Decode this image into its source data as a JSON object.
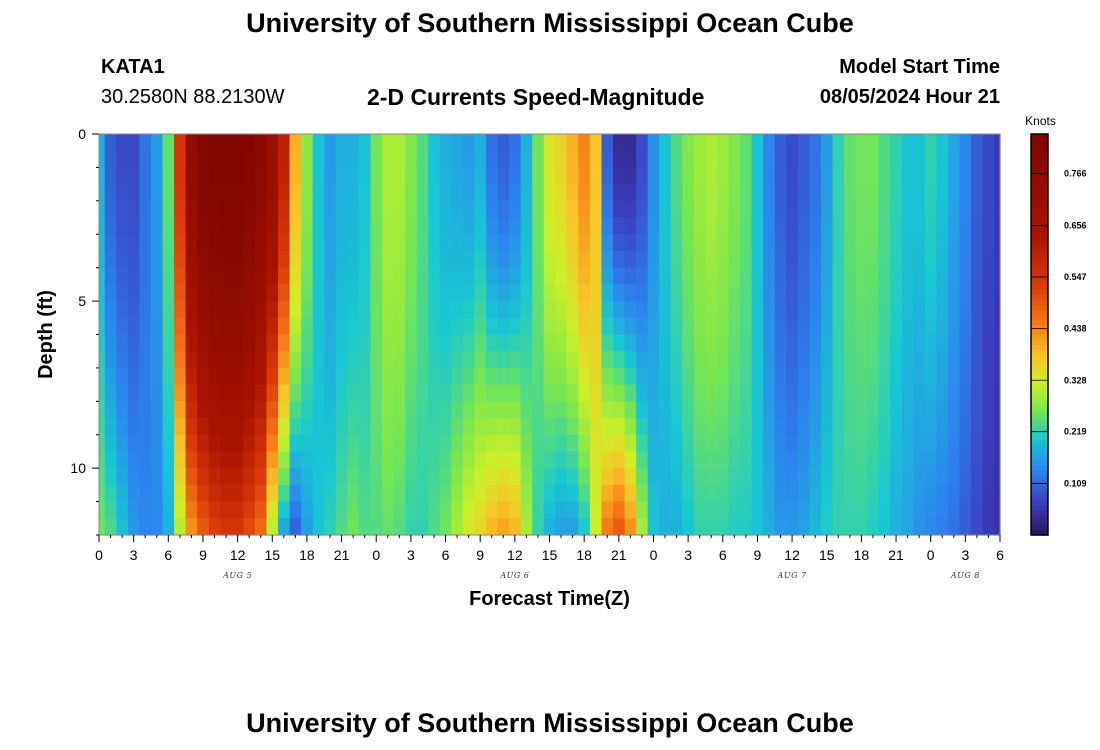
{
  "header": {
    "title": "University of Southern Mississippi Ocean Cube",
    "station_id": "KATA1",
    "station_coords": "30.2580N  88.2130W",
    "subtitle": "2-D Currents Speed-Magnitude",
    "model_start_label": "Model Start Time",
    "model_start_value": "08/05/2024 Hour 21"
  },
  "footer": {
    "title": "University of Southern Mississippi Ocean Cube"
  },
  "chart_data": {
    "type": "heatmap",
    "title": "2-D Currents Speed-Magnitude",
    "xlabel": "Forecast Time(Z)",
    "ylabel": "Depth (ft)",
    "x_unit": "hours since Aug 5 00Z",
    "xlim": [
      0,
      78
    ],
    "ylim": [
      0,
      12
    ],
    "y_inverted": true,
    "x_ticks": [
      0,
      3,
      6,
      9,
      12,
      15,
      18,
      21,
      24,
      27,
      30,
      33,
      36,
      39,
      42,
      45,
      48,
      51,
      54,
      57,
      60,
      63,
      66,
      69,
      72,
      75,
      78
    ],
    "x_tick_labels": [
      "0",
      "3",
      "6",
      "9",
      "12",
      "15",
      "18",
      "21",
      "0",
      "3",
      "6",
      "9",
      "12",
      "15",
      "18",
      "21",
      "0",
      "3",
      "6",
      "9",
      "12",
      "15",
      "18",
      "21",
      "0",
      "3",
      "6"
    ],
    "y_ticks": [
      0,
      5,
      10
    ],
    "y_tick_labels": [
      "0",
      "5",
      "10"
    ],
    "day_labels": [
      {
        "x": 12,
        "label": "AUG 5"
      },
      {
        "x": 36,
        "label": "AUG 6"
      },
      {
        "x": 60,
        "label": "AUG 7"
      },
      {
        "x": 75,
        "label": "AUG 8"
      }
    ],
    "colorbar": {
      "unit": "Knots",
      "min": 0.0,
      "max": 0.85,
      "tick_values": [
        0.109,
        0.219,
        0.328,
        0.438,
        0.547,
        0.656,
        0.766
      ],
      "tick_labels": [
        "0.109",
        "0.219",
        "0.328",
        "0.438",
        "0.547",
        "0.656",
        "0.766"
      ]
    },
    "speed_profile_knots": {
      "hours": [
        0,
        1,
        2,
        3,
        4,
        5,
        6,
        7,
        8,
        9,
        10,
        11,
        12,
        13,
        14,
        15,
        16,
        17,
        18,
        19,
        20,
        21,
        22,
        23,
        24,
        25,
        26,
        27,
        28,
        29,
        30,
        31,
        32,
        33,
        34,
        35,
        36,
        37,
        38,
        39,
        40,
        41,
        42,
        43,
        44,
        45,
        46,
        47,
        48,
        49,
        50,
        51,
        52,
        53,
        54,
        55,
        56,
        57,
        58,
        59,
        60,
        61,
        62,
        63,
        64,
        65,
        66,
        67,
        68,
        69,
        70,
        71,
        72,
        73,
        74,
        75,
        76,
        77,
        78
      ],
      "surface": [
        0.18,
        0.1,
        0.08,
        0.08,
        0.12,
        0.16,
        0.25,
        0.55,
        0.75,
        0.82,
        0.84,
        0.84,
        0.84,
        0.82,
        0.78,
        0.72,
        0.6,
        0.4,
        0.28,
        0.2,
        0.16,
        0.18,
        0.18,
        0.2,
        0.26,
        0.3,
        0.3,
        0.27,
        0.24,
        0.2,
        0.18,
        0.17,
        0.16,
        0.18,
        0.12,
        0.1,
        0.12,
        0.18,
        0.26,
        0.34,
        0.36,
        0.4,
        0.44,
        0.38,
        0.1,
        0.04,
        0.04,
        0.08,
        0.15,
        0.2,
        0.24,
        0.27,
        0.29,
        0.3,
        0.29,
        0.27,
        0.25,
        0.2,
        0.14,
        0.1,
        0.08,
        0.1,
        0.12,
        0.16,
        0.22,
        0.25,
        0.26,
        0.26,
        0.24,
        0.22,
        0.2,
        0.2,
        0.22,
        0.2,
        0.17,
        0.14,
        0.1,
        0.08,
        0.06
      ],
      "bottom": [
        0.26,
        0.24,
        0.2,
        0.16,
        0.14,
        0.14,
        0.18,
        0.3,
        0.42,
        0.48,
        0.52,
        0.54,
        0.54,
        0.5,
        0.46,
        0.3,
        0.16,
        0.1,
        0.16,
        0.2,
        0.22,
        0.24,
        0.26,
        0.24,
        0.24,
        0.25,
        0.24,
        0.22,
        0.22,
        0.24,
        0.26,
        0.3,
        0.34,
        0.36,
        0.4,
        0.42,
        0.4,
        0.3,
        0.22,
        0.18,
        0.16,
        0.16,
        0.2,
        0.32,
        0.46,
        0.5,
        0.44,
        0.3,
        0.2,
        0.18,
        0.18,
        0.2,
        0.22,
        0.22,
        0.22,
        0.21,
        0.21,
        0.2,
        0.18,
        0.16,
        0.16,
        0.17,
        0.19,
        0.21,
        0.22,
        0.22,
        0.22,
        0.21,
        0.2,
        0.18,
        0.17,
        0.15,
        0.14,
        0.13,
        0.12,
        0.1,
        0.08,
        0.06,
        0.05
      ]
    }
  }
}
